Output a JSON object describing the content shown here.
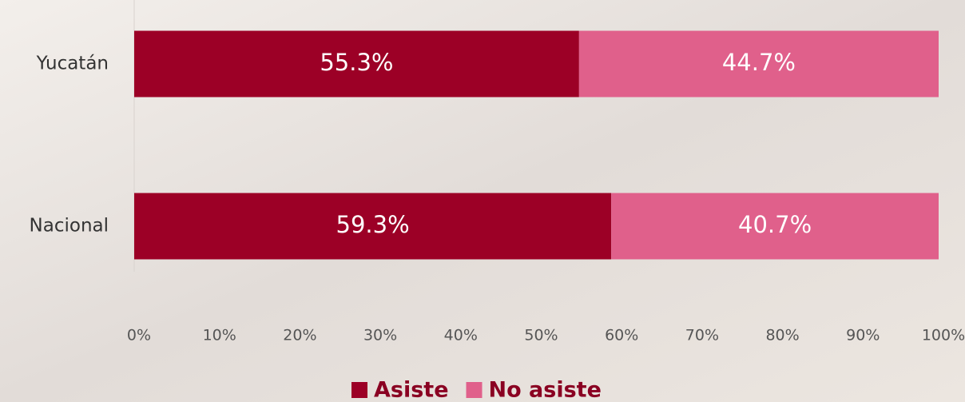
{
  "chart_data": {
    "type": "stacked-bar-horizontal",
    "categories": [
      "Yucatán",
      "Nacional"
    ],
    "series": [
      {
        "name": "Asiste",
        "color": "#9c0026",
        "values": [
          55.3,
          59.3
        ],
        "value_labels": [
          "55.3%",
          "59.3%"
        ]
      },
      {
        "name": "No asiste",
        "color": "#e0608b",
        "values": [
          44.7,
          40.7
        ],
        "value_labels": [
          "44.7%",
          "40.7%"
        ]
      }
    ],
    "xlim": [
      0,
      100
    ],
    "xticks": [
      {
        "value": 0,
        "label": "0%"
      },
      {
        "value": 10,
        "label": "10%"
      },
      {
        "value": 20,
        "label": "20%"
      },
      {
        "value": 30,
        "label": "30%"
      },
      {
        "value": 40,
        "label": "40%"
      },
      {
        "value": 50,
        "label": "50%"
      },
      {
        "value": 60,
        "label": "60%"
      },
      {
        "value": 70,
        "label": "70%"
      },
      {
        "value": 80,
        "label": "80%"
      },
      {
        "value": 90,
        "label": "90%"
      },
      {
        "value": 100,
        "label": "100%"
      }
    ],
    "legend": "bottom"
  }
}
